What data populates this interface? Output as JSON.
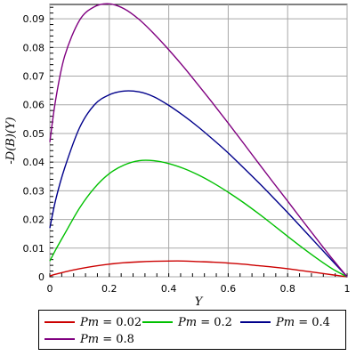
{
  "chart_data": {
    "type": "line",
    "title": "",
    "xlabel": "Y",
    "ylabel": "-D(B)(Y)",
    "xlim": [
      0,
      1
    ],
    "ylim": [
      0,
      0.095
    ],
    "grid": true,
    "legend_placement": "bottom",
    "x_ticks": [
      "0",
      "0.2",
      "0.4",
      "0.6",
      "0.8",
      "1"
    ],
    "y_ticks": [
      "0",
      "0.01",
      "0.02",
      "0.03",
      "0.04",
      "0.05",
      "0.06",
      "0.07",
      "0.08",
      "0.09"
    ],
    "x": [
      0,
      0.02,
      0.05,
      0.1,
      0.15,
      0.2,
      0.25,
      0.3,
      0.35,
      0.4,
      0.45,
      0.5,
      0.55,
      0.6,
      0.65,
      0.7,
      0.75,
      0.8,
      0.85,
      0.9,
      0.95,
      1.0
    ],
    "series": [
      {
        "name": "Pm = 0.02",
        "name_html": "<i>Pm</i> = 0.02",
        "color": "#cc0000",
        "values": [
          0.0003,
          0.0009,
          0.0017,
          0.0028,
          0.0037,
          0.0044,
          0.0049,
          0.0052,
          0.0054,
          0.0055,
          0.0055,
          0.0053,
          0.0051,
          0.0048,
          0.0044,
          0.0039,
          0.0034,
          0.0028,
          0.0021,
          0.0014,
          0.0007,
          0.0
        ]
      },
      {
        "name": "Pm = 0.2",
        "name_html": "<i>Pm</i> = 0.2",
        "color": "#00c000",
        "values": [
          0.0055,
          0.0095,
          0.015,
          0.024,
          0.031,
          0.036,
          0.039,
          0.0405,
          0.0405,
          0.0395,
          0.0378,
          0.0355,
          0.0327,
          0.0295,
          0.026,
          0.0222,
          0.0182,
          0.0141,
          0.0101,
          0.0063,
          0.0028,
          0.0
        ]
      },
      {
        "name": "Pm = 0.4",
        "name_html": "<i>Pm</i> = 0.4",
        "color": "#00008b",
        "values": [
          0.017,
          0.027,
          0.038,
          0.052,
          0.06,
          0.0635,
          0.0648,
          0.0645,
          0.0628,
          0.0598,
          0.0562,
          0.0522,
          0.0478,
          0.0432,
          0.0382,
          0.0331,
          0.0278,
          0.0224,
          0.0168,
          0.0112,
          0.0056,
          0.0
        ]
      },
      {
        "name": "Pm = 0.8",
        "name_html": "<i>Pm</i> = 0.8",
        "color": "#800080",
        "values": [
          0.047,
          0.062,
          0.077,
          0.0895,
          0.0942,
          0.0952,
          0.0935,
          0.0898,
          0.0848,
          0.0792,
          0.0732,
          0.0668,
          0.0603,
          0.0536,
          0.0468,
          0.0399,
          0.0331,
          0.0264,
          0.0196,
          0.0129,
          0.0063,
          0.0
        ]
      }
    ]
  }
}
